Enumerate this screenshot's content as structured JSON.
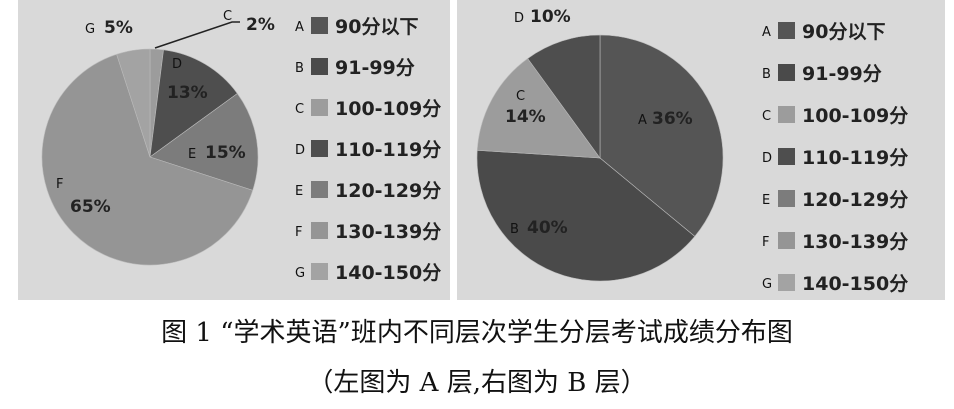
{
  "legend": [
    {
      "letter": "A",
      "label": "90分以下",
      "color": "#555555"
    },
    {
      "letter": "B",
      "label": "91-99分",
      "color": "#4a4a4a"
    },
    {
      "letter": "C",
      "label": "100-109分",
      "color": "#9c9c9c"
    },
    {
      "letter": "D",
      "label": "110-119分",
      "color": "#4e4e4e"
    },
    {
      "letter": "E",
      "label": "120-129分",
      "color": "#7c7c7c"
    },
    {
      "letter": "F",
      "label": "130-139分",
      "color": "#959595"
    },
    {
      "letter": "G",
      "label": "140-150分",
      "color": "#a3a3a3"
    }
  ],
  "chart_data": [
    {
      "type": "pie",
      "slices": [
        {
          "letter": "C",
          "value": 2,
          "label": "2%"
        },
        {
          "letter": "D",
          "value": 13,
          "label": "13%"
        },
        {
          "letter": "E",
          "value": 15,
          "label": "15%"
        },
        {
          "letter": "F",
          "value": 65,
          "label": "65%"
        },
        {
          "letter": "G",
          "value": 5,
          "label": "5%"
        }
      ]
    },
    {
      "type": "pie",
      "slices": [
        {
          "letter": "A",
          "value": 36,
          "label": "36%"
        },
        {
          "letter": "B",
          "value": 40,
          "label": "40%"
        },
        {
          "letter": "C",
          "value": 14,
          "label": "14%"
        },
        {
          "letter": "D",
          "value": 10,
          "label": "10%"
        }
      ]
    }
  ],
  "caption": {
    "line1": "图 1 “学术英语”班内不同层次学生分层考试成绩分布图",
    "line2": "（左图为 A 层,右图为 B 层）"
  }
}
